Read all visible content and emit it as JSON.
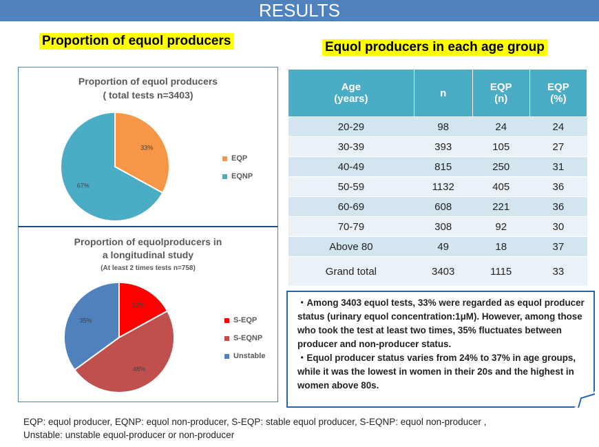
{
  "header": {
    "title": "RESULTS"
  },
  "left_heading": "Proportion of equol producers",
  "right_heading": "Equol producers in each age group",
  "chart_data": [
    {
      "type": "pie",
      "title": "Proportion of equol producers",
      "subtitle": "( total tests n=3403)",
      "labels": [
        "EQP",
        "EQNP"
      ],
      "values": [
        33,
        67
      ],
      "data_labels": [
        "33%",
        "67%"
      ],
      "colors": [
        "#f79646",
        "#4bacc6"
      ],
      "legend": "right"
    },
    {
      "type": "pie",
      "title": "Proportion of equolproducers in",
      "title2": "a longitudinal study",
      "subtitle": "(At least 2 times tests n=758)",
      "labels": [
        "S-EQP",
        "S-EQNP",
        "Unstable"
      ],
      "values": [
        17,
        48,
        35
      ],
      "data_labels": [
        "17%",
        "48%",
        "35%"
      ],
      "colors": [
        "#ff0000",
        "#c0504d",
        "#4f81bd"
      ],
      "legend": "right"
    }
  ],
  "table": {
    "headers": [
      [
        "Age",
        "(years)"
      ],
      [
        "n",
        ""
      ],
      [
        "EQP",
        "(n)"
      ],
      [
        "EQP",
        "(%)"
      ]
    ],
    "rows": [
      [
        "20-29",
        "98",
        "24",
        "24"
      ],
      [
        "30-39",
        "393",
        "105",
        "27"
      ],
      [
        "40-49",
        "815",
        "250",
        "31"
      ],
      [
        "50-59",
        "1132",
        "405",
        "36"
      ],
      [
        "60-69",
        "608",
        "221",
        "36"
      ],
      [
        "70-79",
        "308",
        "92",
        "30"
      ],
      [
        "Above 80",
        "49",
        "18",
        "37"
      ],
      [
        "Grand total",
        "3403",
        "1115",
        "33"
      ]
    ]
  },
  "callout": [
    "・Among 3403 equol tests, 33% were regarded as equol producer status (urinary equol concentration:1μM). However, among those who took the test at least two times, 35% fluctuates between producer and non-producer status.",
    "・Equol producer status varies from 24% to 37% in age groups, while it was the lowest in women in their 20s and the highest in women above 80s."
  ],
  "footnote": [
    "EQP: equol producer, EQNP: equol non-producer, S-EQP: stable equol producer, S-EQNP: equol non-producer ,",
    "Unstable: unstable equol-producer or non-producer"
  ]
}
